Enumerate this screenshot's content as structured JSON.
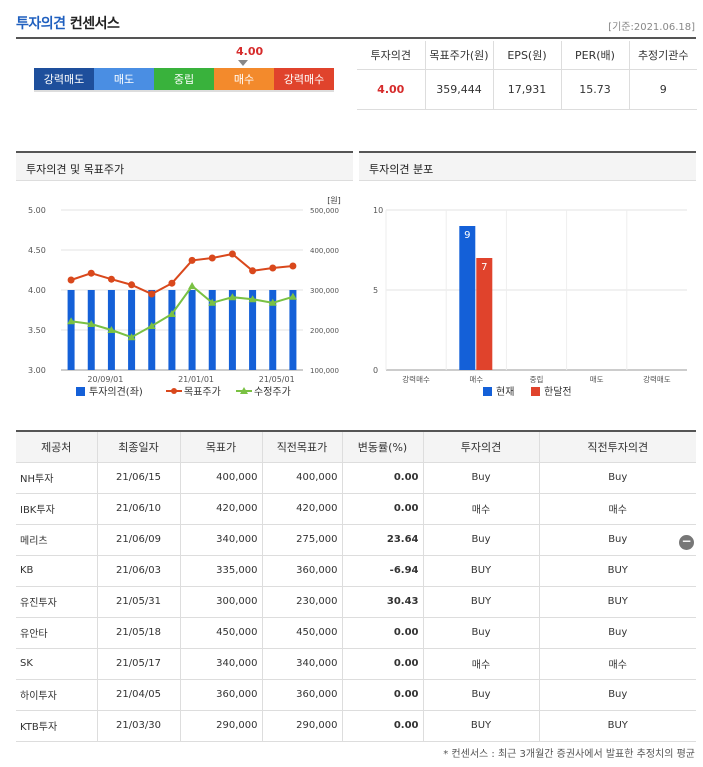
{
  "header": {
    "title_main": "투자의견",
    "title_sub": "컨센서스",
    "base_date": "[기준:2021.06.18]"
  },
  "gauge": {
    "value": "4.00",
    "value_numeric": 4.0,
    "segments": [
      {
        "label": "강력매도",
        "color": "#1e4f9c"
      },
      {
        "label": "매도",
        "color": "#4a8ee3"
      },
      {
        "label": "중립",
        "color": "#39b23c"
      },
      {
        "label": "매수",
        "color": "#f38a2c"
      },
      {
        "label": "강력매수",
        "color": "#e0432c"
      }
    ]
  },
  "summary": {
    "headers": [
      "투자의견",
      "목표주가(원)",
      "EPS(원)",
      "PER(배)",
      "추정기관수"
    ],
    "values": [
      "4.00",
      "359,444",
      "17,931",
      "15.73",
      "9"
    ]
  },
  "left_panel": {
    "title": "투자의견 및 목표주가",
    "unit": "[원]",
    "legend": [
      "투자의견(좌)",
      "목표주가",
      "수정주가"
    ]
  },
  "right_panel": {
    "title": "투자의견 분포",
    "legend": [
      "현재",
      "한달전"
    ]
  },
  "chart_data": [
    {
      "type": "bar",
      "title": "투자의견 및 목표주가",
      "x_ticks": [
        "20/09/01",
        "21/01/01",
        "21/05/01"
      ],
      "y_left_ticks": [
        "5.00",
        "4.50",
        "4.00",
        "3.50",
        "3.00"
      ],
      "y_left_range": [
        3.0,
        5.0
      ],
      "y_right_ticks": [
        "500,000",
        "400,000",
        "300,000",
        "200,000",
        "100,000"
      ],
      "y_right_range": [
        100000,
        500000
      ],
      "series": [
        {
          "name": "투자의견(좌)",
          "type": "bar",
          "axis": "left",
          "color": "#1460d8",
          "values": [
            4,
            4,
            4,
            4,
            4,
            4,
            4,
            4,
            4,
            4,
            4,
            4
          ]
        },
        {
          "name": "목표주가",
          "type": "line",
          "axis": "right",
          "color": "#d9481c",
          "values": [
            325000,
            342000,
            327000,
            313000,
            290000,
            317000,
            374000,
            380000,
            390000,
            348000,
            355000,
            360000
          ]
        },
        {
          "name": "수정주가",
          "type": "line",
          "axis": "right",
          "color": "#7ac143",
          "values": [
            222000,
            215000,
            200000,
            182000,
            210000,
            240000,
            310000,
            268000,
            282000,
            277000,
            268000,
            283000
          ]
        }
      ]
    },
    {
      "type": "bar",
      "title": "투자의견 분포",
      "categories": [
        "강력매수",
        "매수",
        "중립",
        "매도",
        "강력매도"
      ],
      "ylim": [
        0,
        10
      ],
      "y_ticks": [
        "10",
        "5",
        "0"
      ],
      "series": [
        {
          "name": "현재",
          "color": "#1460d8",
          "values": [
            0,
            9,
            0,
            0,
            0
          ]
        },
        {
          "name": "한달전",
          "color": "#e0432c",
          "values": [
            0,
            7,
            0,
            0,
            0
          ]
        }
      ]
    }
  ],
  "list": {
    "headers": [
      "제공처",
      "최종일자",
      "목표가",
      "직전목표가",
      "변동률(%)",
      "투자의견",
      "직전투자의견"
    ],
    "rows": [
      [
        "NH투자",
        "21/06/15",
        "400,000",
        "400,000",
        "0.00",
        "Buy",
        "Buy"
      ],
      [
        "IBK투자",
        "21/06/10",
        "420,000",
        "420,000",
        "0.00",
        "매수",
        "매수"
      ],
      [
        "메리츠",
        "21/06/09",
        "340,000",
        "275,000",
        "23.64",
        "Buy",
        "Buy"
      ],
      [
        "KB",
        "21/06/03",
        "335,000",
        "360,000",
        "-6.94",
        "BUY",
        "BUY"
      ],
      [
        "유진투자",
        "21/05/31",
        "300,000",
        "230,000",
        "30.43",
        "BUY",
        "BUY"
      ],
      [
        "유안타",
        "21/05/18",
        "450,000",
        "450,000",
        "0.00",
        "Buy",
        "Buy"
      ],
      [
        "SK",
        "21/05/17",
        "340,000",
        "340,000",
        "0.00",
        "매수",
        "매수"
      ],
      [
        "하이투자",
        "21/04/05",
        "360,000",
        "360,000",
        "0.00",
        "Buy",
        "Buy"
      ],
      [
        "KTB투자",
        "21/03/30",
        "290,000",
        "290,000",
        "0.00",
        "BUY",
        "BUY"
      ]
    ]
  },
  "footnote": "* 컨센서스 : 최근 3개월간 증권사에서 발표한 추정치의 평균",
  "collapse_icon": "minus-circle-icon"
}
